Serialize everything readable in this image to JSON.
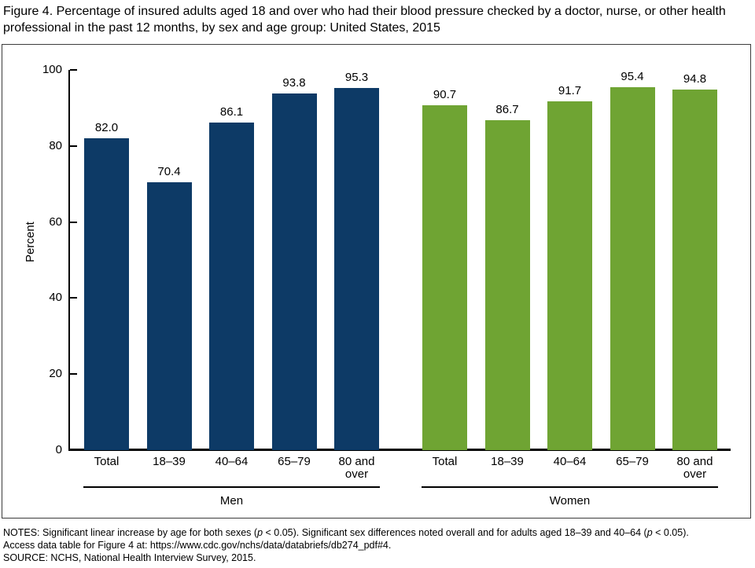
{
  "title": "Figure 4. Percentage of insured adults aged 18 and over who had their blood pressure checked by a doctor, nurse, or other health professional in the past 12 months, by sex and age group: United States, 2015",
  "chart_data": {
    "type": "bar",
    "title": "",
    "xlabel": "",
    "ylabel": "Percent",
    "ylim": [
      0,
      100
    ],
    "yticks": [
      0,
      20,
      40,
      60,
      80,
      100
    ],
    "grid": false,
    "value_labels": true,
    "legend_position": "none",
    "categories": [
      "Total",
      "18–39",
      "40–64",
      "65–79",
      "80 and over"
    ],
    "series": [
      {
        "name": "Men",
        "color": "#0d3a66",
        "values": [
          82.0,
          70.4,
          86.1,
          93.8,
          95.3
        ]
      },
      {
        "name": "Women",
        "color": "#6fa433",
        "values": [
          90.7,
          86.7,
          91.7,
          95.4,
          94.8
        ]
      }
    ]
  },
  "notes": {
    "line1_parts": [
      "NOTES: Significant linear increase by age for both sexes (",
      "p",
      " < 0.05). Significant sex differences noted overall and for adults aged 18–39 and 40–64 (",
      "p",
      " < 0.05)."
    ],
    "line2": "Access data table for Figure 4 at: https://www.cdc.gov/nchs/data/databriefs/db274_pdf#4.",
    "line3": "SOURCE: NCHS, National Health Interview Survey, 2015."
  }
}
